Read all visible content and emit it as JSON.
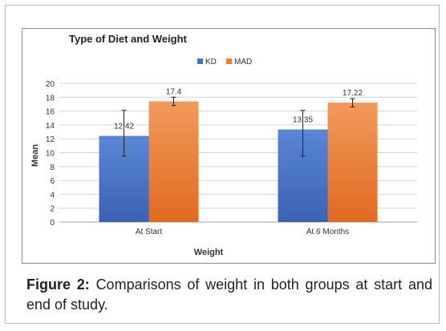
{
  "caption": {
    "label": "Figure 2:",
    "text": "Comparisons of weight in both groups at start and end of study."
  },
  "chart_data": {
    "type": "bar",
    "title": "Type of Diet and Weight",
    "xlabel": "Weight",
    "ylabel": "Mean",
    "ylim": [
      0,
      20
    ],
    "yticks": [
      0,
      2,
      4,
      6,
      8,
      10,
      12,
      14,
      16,
      18,
      20
    ],
    "grid": true,
    "legend_position": "top",
    "categories": [
      "At Start",
      "At 6 Months"
    ],
    "series": [
      {
        "name": "KD",
        "values": [
          12.42,
          13.35
        ],
        "value_labels": [
          "12.42",
          "13.35"
        ],
        "error_low": [
          9.5,
          9.5
        ],
        "error_high": [
          16.1,
          16.1
        ],
        "color": "#4472c4"
      },
      {
        "name": "MAD",
        "values": [
          17.4,
          17.22
        ],
        "value_labels": [
          "17.4",
          "17.22"
        ],
        "error_low": [
          16.8,
          16.6
        ],
        "error_high": [
          18.0,
          17.8
        ],
        "color": "#ed7d31"
      }
    ]
  }
}
